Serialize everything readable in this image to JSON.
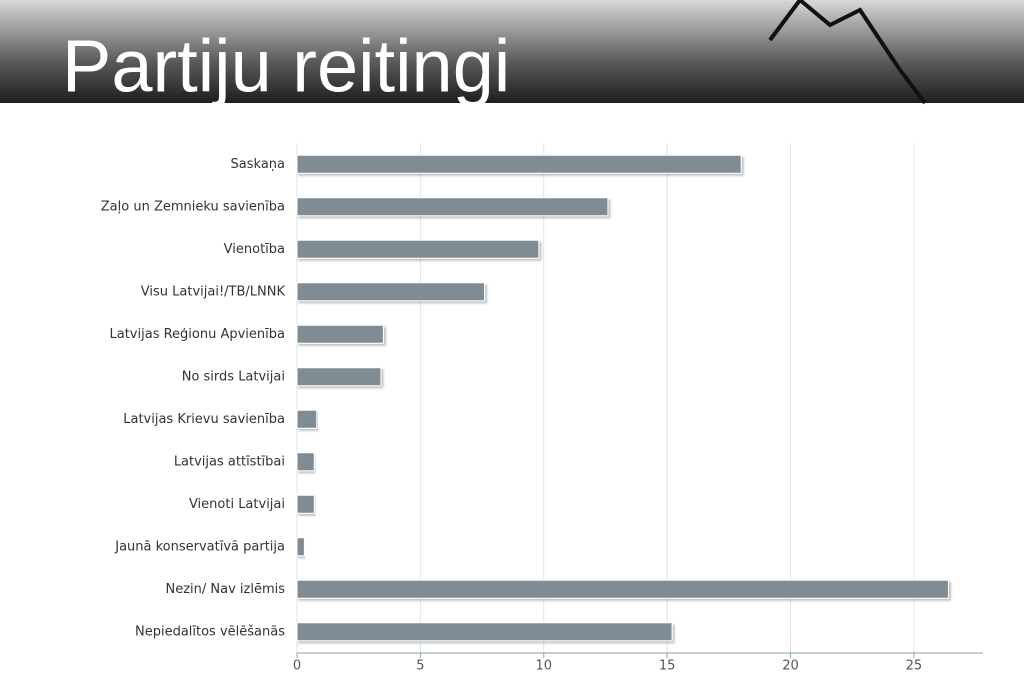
{
  "chart_data": {
    "type": "bar",
    "orientation": "horizontal",
    "title": "Partiju reitingi",
    "categories": [
      "Saskaņa",
      "Zaļo un Zemnieku savienība",
      "Vienotība",
      "Visu Latvijai!/TB/LNNK",
      "Latvijas Reģionu Apvienība",
      "No sirds Latvijai",
      "Latvijas Krievu savienība",
      "Latvijas attīstībai",
      "Vienoti Latvijai",
      "Jaunā konservatīvā partija",
      "Nezin/ Nav izlēmis",
      "Nepiedalītos vēlēšanās"
    ],
    "values": [
      18.0,
      12.6,
      9.8,
      7.6,
      3.5,
      3.4,
      0.8,
      0.7,
      0.7,
      0.3,
      26.4,
      15.2
    ],
    "color": "#7f8c94",
    "xlim": [
      0,
      27.8
    ],
    "xticks": [
      0,
      5,
      10,
      15,
      20,
      25
    ],
    "grid": true
  }
}
